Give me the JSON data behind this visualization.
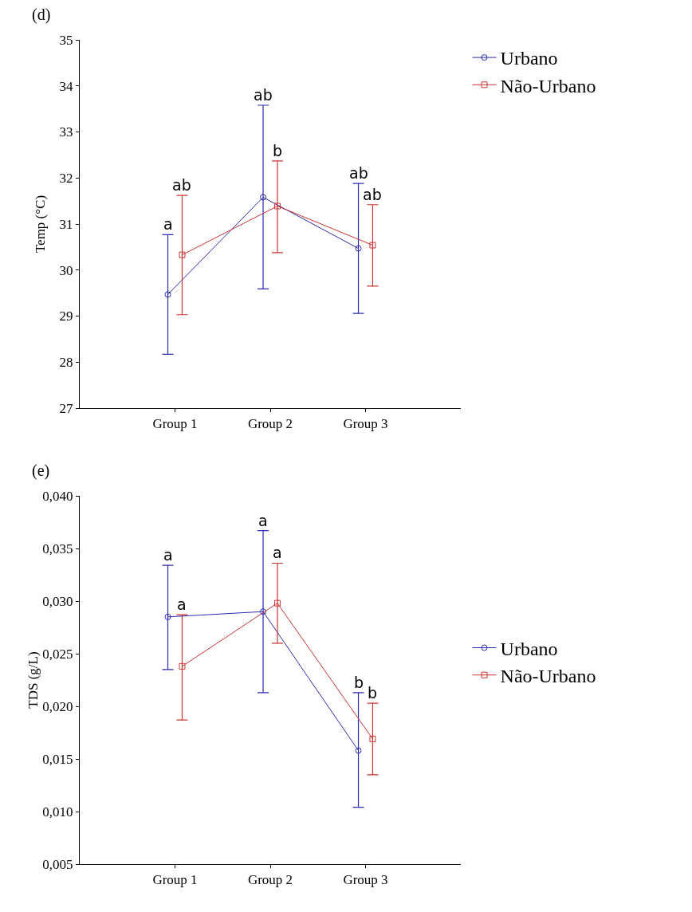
{
  "chart_data": [
    {
      "type": "line",
      "title": "(d)",
      "ylabel": "Temp (°C)",
      "categories": [
        "Group 1",
        "Group 2",
        "Group 3"
      ],
      "series": [
        {
          "name": "Urbano",
          "color": "#2b2bb0",
          "marker": "circle",
          "values": [
            29.47,
            31.58,
            30.47
          ],
          "errors": [
            [
              28.17,
              30.77
            ],
            [
              29.59,
              33.58
            ],
            [
              29.06,
              31.88
            ]
          ]
        },
        {
          "name": "Não-Urbano",
          "color": "#cc3333",
          "marker": "square",
          "values": [
            30.33,
            31.39,
            30.54
          ],
          "errors": [
            [
              29.03,
              31.62
            ],
            [
              30.38,
              32.37
            ],
            [
              29.65,
              31.42
            ]
          ]
        }
      ],
      "ylim": [
        27,
        35
      ],
      "yticks": [
        27,
        28,
        29,
        30,
        31,
        32,
        33,
        34,
        35
      ],
      "grid": false,
      "legend": "top right",
      "line_style": "solid",
      "annotations": [
        {
          "text": "a",
          "x": "Group 1",
          "y": 30.77
        },
        {
          "text": "ab",
          "x": "Group 1",
          "y": 31.62
        },
        {
          "text": "ab",
          "x": "Group 2",
          "y": 33.58
        },
        {
          "text": "b",
          "x": "Group 2",
          "y": 32.37
        },
        {
          "text": "ab",
          "x": "Group 3",
          "y": 31.88
        },
        {
          "text": "ab",
          "x": "Group 3",
          "y": 31.42
        }
      ]
    },
    {
      "type": "line",
      "title": "(e)",
      "ylabel": "TDS (g/L)",
      "categories": [
        "Group 1",
        "Group 2",
        "Group 3"
      ],
      "series": [
        {
          "name": "Urbano",
          "color": "#2b2bb0",
          "marker": "circle",
          "values": [
            0.0285,
            0.029,
            0.0158
          ],
          "errors": [
            [
              0.0235,
              0.0334
            ],
            [
              0.0213,
              0.0367
            ],
            [
              0.0104,
              0.0213
            ]
          ]
        },
        {
          "name": "Não-Urbano",
          "color": "#cc3333",
          "marker": "square",
          "values": [
            0.0238,
            0.0298,
            0.0169
          ],
          "errors": [
            [
              0.0187,
              0.0287
            ],
            [
              0.026,
              0.0336
            ],
            [
              0.0135,
              0.0203
            ]
          ]
        }
      ],
      "ylim": [
        0.005,
        0.04
      ],
      "yticks": [
        {
          "value": 0.005,
          "label": "0,005"
        },
        {
          "value": 0.01,
          "label": "0,010"
        },
        {
          "value": 0.015,
          "label": "0,015"
        },
        {
          "value": 0.02,
          "label": "0,020"
        },
        {
          "value": 0.025,
          "label": "0,025"
        },
        {
          "value": 0.03,
          "label": "0,030"
        },
        {
          "value": 0.035,
          "label": "0,035"
        },
        {
          "value": 0.04,
          "label": "0,040"
        }
      ],
      "grid": false,
      "legend": "right",
      "line_style": "solid",
      "annotations": [
        {
          "text": "a",
          "x": "Group 1",
          "y": 0.0334
        },
        {
          "text": "a",
          "x": "Group 1",
          "y": 0.0287
        },
        {
          "text": "a",
          "x": "Group 2",
          "y": 0.0367
        },
        {
          "text": "a",
          "x": "Group 2",
          "y": 0.0336
        },
        {
          "text": "b",
          "x": "Group 3",
          "y": 0.0213
        },
        {
          "text": "b",
          "x": "Group 3",
          "y": 0.0203
        }
      ]
    }
  ]
}
